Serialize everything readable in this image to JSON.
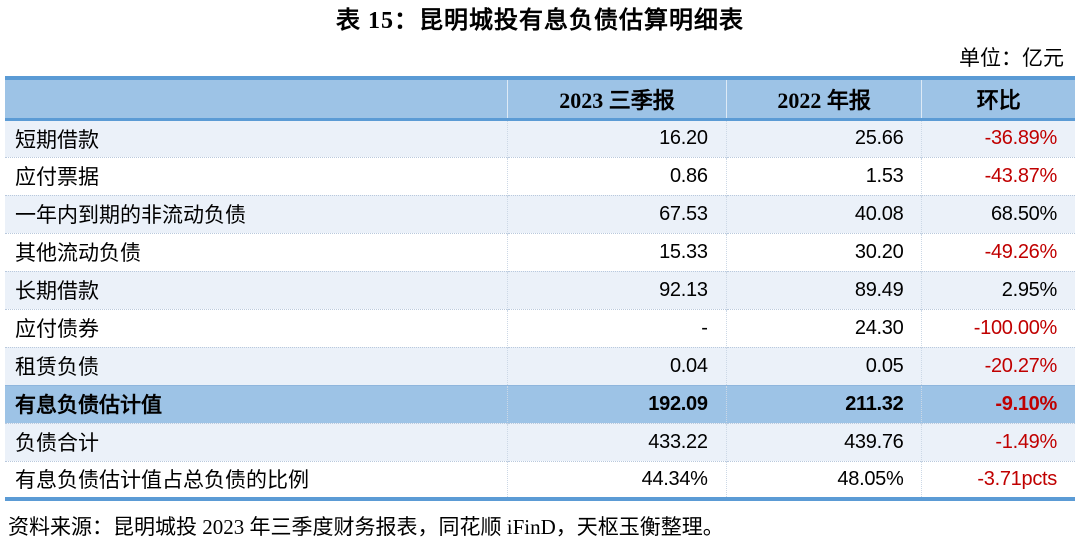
{
  "page": {
    "title": "表 15：昆明城投有息负债估算明细表",
    "unit_note": "单位：亿元",
    "source_note": "资料来源：昆明城投 2023 年三季度财务报表，同花顺 iFinD，天枢玉衡整理。"
  },
  "colors": {
    "header_bg": "#9DC3E6",
    "stripe_bg": "#EBF1F9",
    "highlight_bg": "#9DC3E6",
    "border_blue": "#5B9BD5",
    "negative_red": "#C00000"
  },
  "table": {
    "columns": [
      "",
      "2023 三季报",
      "2022 年报",
      "环比"
    ],
    "rows": [
      {
        "label": "短期借款",
        "v2023": "16.20",
        "v2022": "25.66",
        "change": "-36.89%",
        "change_red": true,
        "style": "stripe"
      },
      {
        "label": "应付票据",
        "v2023": "0.86",
        "v2022": "1.53",
        "change": "-43.87%",
        "change_red": true,
        "style": "plain"
      },
      {
        "label": "一年内到期的非流动负债",
        "v2023": "67.53",
        "v2022": "40.08",
        "change": "68.50%",
        "change_red": false,
        "style": "stripe"
      },
      {
        "label": "其他流动负债",
        "v2023": "15.33",
        "v2022": "30.20",
        "change": "-49.26%",
        "change_red": true,
        "style": "plain"
      },
      {
        "label": "长期借款",
        "v2023": "92.13",
        "v2022": "89.49",
        "change": "2.95%",
        "change_red": false,
        "style": "stripe"
      },
      {
        "label": "应付债券",
        "v2023": "-",
        "v2022": "24.30",
        "change": "-100.00%",
        "change_red": true,
        "style": "plain"
      },
      {
        "label": "租赁负债",
        "v2023": "0.04",
        "v2022": "0.05",
        "change": "-20.27%",
        "change_red": true,
        "style": "stripe"
      },
      {
        "label": "有息负债估计值",
        "v2023": "192.09",
        "v2022": "211.32",
        "change": "-9.10%",
        "change_red": true,
        "style": "highlight"
      },
      {
        "label": "负债合计",
        "v2023": "433.22",
        "v2022": "439.76",
        "change": "-1.49%",
        "change_red": true,
        "style": "stripe"
      },
      {
        "label": "有息负债估计值占总负债的比例",
        "v2023": "44.34%",
        "v2022": "48.05%",
        "change": "-3.71pcts",
        "change_red": true,
        "style": "plain"
      }
    ]
  },
  "chart_data": {
    "type": "table",
    "title": "表 15：昆明城投有息负债估算明细表",
    "unit": "亿元",
    "categories": [
      "短期借款",
      "应付票据",
      "一年内到期的非流动负债",
      "其他流动负债",
      "长期借款",
      "应付债券",
      "租赁负债",
      "有息负债估计值",
      "负债合计",
      "有息负债估计值占总负债的比例"
    ],
    "series": [
      {
        "name": "2023 三季报",
        "values": [
          16.2,
          0.86,
          67.53,
          15.33,
          92.13,
          null,
          0.04,
          192.09,
          433.22,
          "44.34%"
        ]
      },
      {
        "name": "2022 年报",
        "values": [
          25.66,
          1.53,
          40.08,
          30.2,
          89.49,
          24.3,
          0.05,
          211.32,
          439.76,
          "48.05%"
        ]
      },
      {
        "name": "环比",
        "values": [
          "-36.89%",
          "-43.87%",
          "68.50%",
          "-49.26%",
          "2.95%",
          "-100.00%",
          "-20.27%",
          "-9.10%",
          "-1.49%",
          "-3.71pcts"
        ]
      }
    ]
  }
}
